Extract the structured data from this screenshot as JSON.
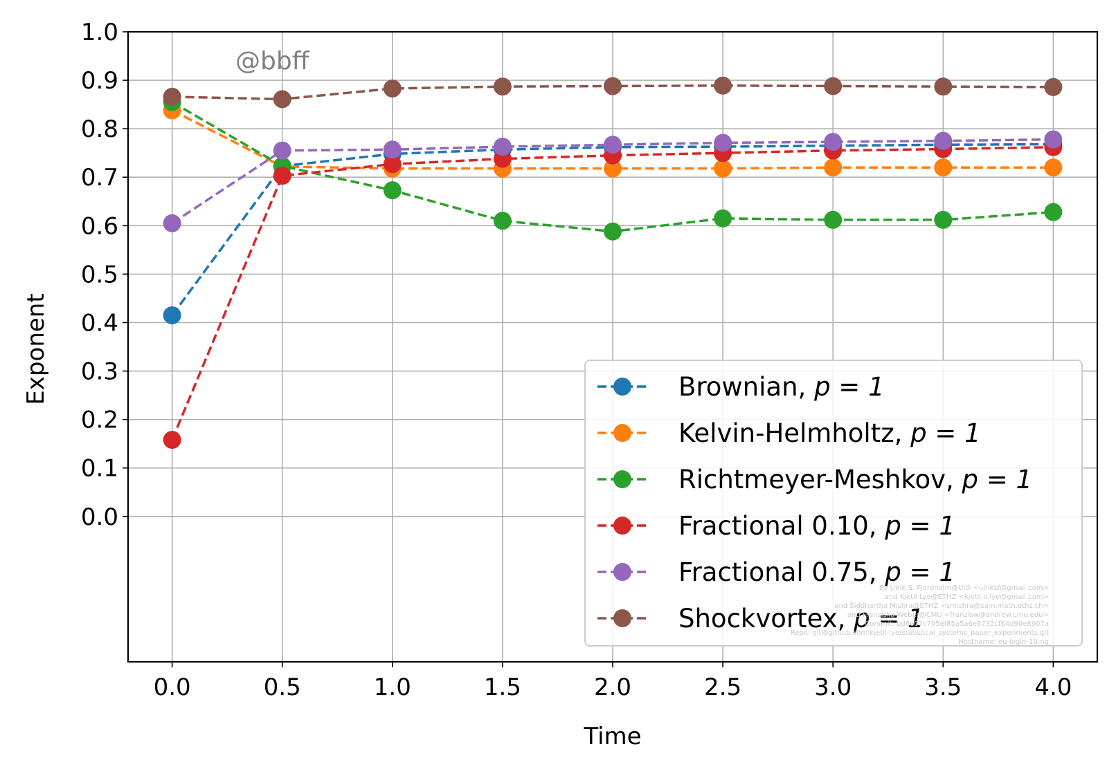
{
  "chart_data": {
    "type": "line",
    "xlabel": "Time",
    "ylabel": "Exponent",
    "xlim": [
      -0.2,
      4.2
    ],
    "ylim": [
      -0.3,
      1.0
    ],
    "xticks": [
      "0.0",
      "0.5",
      "1.0",
      "1.5",
      "2.0",
      "2.5",
      "3.0",
      "3.5",
      "4.0"
    ],
    "yticks": [
      "0.0",
      "0.1",
      "0.2",
      "0.3",
      "0.4",
      "0.5",
      "0.6",
      "0.7",
      "0.8",
      "0.9",
      "1.0"
    ],
    "grid": true,
    "legend_position": "lower-right",
    "watermark": "@bbff",
    "x": [
      0.0,
      0.5,
      1.0,
      1.5,
      2.0,
      2.5,
      3.0,
      3.5,
      4.0
    ],
    "series": [
      {
        "name": "Brownian, p = 1",
        "label_main": "Brownian, ",
        "color": "#1f77b4",
        "values": [
          0.415,
          0.723,
          0.748,
          0.757,
          0.762,
          0.763,
          0.765,
          0.767,
          0.768
        ]
      },
      {
        "name": "Kelvin-Helmholtz, p = 1",
        "label_main": "Kelvin-Helmholtz, ",
        "color": "#ff7f0e",
        "values": [
          0.838,
          0.722,
          0.718,
          0.718,
          0.718,
          0.718,
          0.72,
          0.72,
          0.72
        ]
      },
      {
        "name": "Richtmeyer-Meshkov, p = 1",
        "label_main": "Richtmeyer-Meshkov, ",
        "color": "#2ca02c",
        "values": [
          0.855,
          0.723,
          0.673,
          0.61,
          0.588,
          0.615,
          0.612,
          0.612,
          0.628
        ]
      },
      {
        "name": "Fractional 0.10, p = 1",
        "label_main": "Fractional 0.10, ",
        "color": "#d62728",
        "values": [
          0.158,
          0.703,
          0.727,
          0.738,
          0.745,
          0.75,
          0.755,
          0.758,
          0.762
        ]
      },
      {
        "name": "Fractional 0.75, p = 1",
        "label_main": "Fractional 0.75, ",
        "color": "#9467bd",
        "values": [
          0.605,
          0.755,
          0.757,
          0.763,
          0.767,
          0.771,
          0.773,
          0.775,
          0.778
        ]
      },
      {
        "name": "Shockvortex, p = 1",
        "label_main": "Shockvortex, ",
        "color": "#8c564b",
        "values": [
          0.866,
          0.861,
          0.883,
          0.887,
          0.888,
          0.889,
          0.888,
          0.887,
          0.886
        ]
      }
    ],
    "legend_math": "p = 1",
    "metadata_lines": [
      "By Ulrik S. Fjordholm@UiO <ulriksf@gmail.com>",
      "and Kjetil Lye@ETHZ <kjetil.o.lye@gmail.com>",
      "and Siddhartha Mishra@ETHZ <smishra@sam.math.ethz.ch>",
      "and Franziska Weber@CMU <franzisw@andrew.cmu.edu>",
      "Commit: bd8e07c705ef85a5a6e8732cf64d90e8907a",
      "Repo: git@github.com:kjetil-lye/statistical_systems_paper_experiments.git",
      "Hostname: eu-login-10-ng"
    ]
  }
}
